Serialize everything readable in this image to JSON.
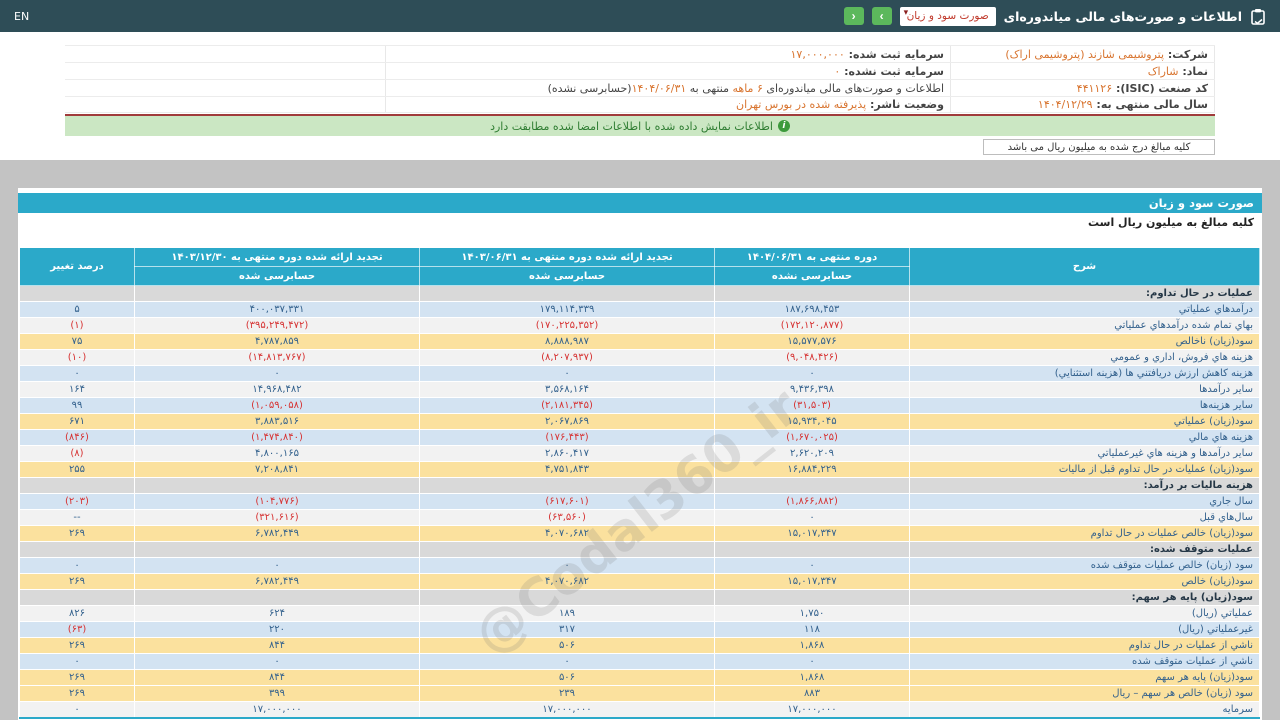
{
  "topbar": {
    "en_label": "EN",
    "title": "اطلاعات و صورت‌های مالی میاندوره‌ای",
    "dropdown_value": "صورت سود و زیان",
    "dropdown_chevron": "▾",
    "next_icon": "›",
    "prev_icon": "‹"
  },
  "company_info": {
    "rows": [
      {
        "right": [
          {
            "t": "شرکت: ",
            "c": "label"
          },
          {
            "t": "پتروشیمی شازند (پتروشیمی اراک)",
            "c": "orange"
          }
        ],
        "mid": [
          {
            "t": "سرمایه ثبت شده: ",
            "c": "label"
          },
          {
            "t": "۱۷,۰۰۰,۰۰۰",
            "c": "orange"
          }
        ]
      },
      {
        "right": [
          {
            "t": "نماد: ",
            "c": "label"
          },
          {
            "t": "شاراک",
            "c": "orange"
          }
        ],
        "mid": [
          {
            "t": "سرمایه ثبت نشده: ",
            "c": "label"
          },
          {
            "t": "۰",
            "c": "orange"
          }
        ]
      },
      {
        "right": [
          {
            "t": "کد صنعت (ISIC): ",
            "c": "label"
          },
          {
            "t": "۴۴۱۱۲۶",
            "c": "orange"
          }
        ],
        "mid": [
          {
            "t": "اطلاعات و صورت‌های مالی میاندوره‌ای ",
            "c": "dark"
          },
          {
            "t": "۶ ماهه",
            "c": "orange"
          },
          {
            "t": " منتهی به ",
            "c": "dark"
          },
          {
            "t": "۱۴۰۴/۰۶/۳۱",
            "c": "orange"
          },
          {
            "t": "(حسابرسی نشده)",
            "c": "dark"
          }
        ]
      },
      {
        "right": [
          {
            "t": "سال مالی منتهی به: ",
            "c": "label"
          },
          {
            "t": "۱۴۰۴/۱۲/۲۹",
            "c": "orange"
          }
        ],
        "mid": [
          {
            "t": "وضعیت ناشر: ",
            "c": "label"
          },
          {
            "t": "پذیرفته شده در بورس تهران",
            "c": "orange"
          }
        ]
      }
    ]
  },
  "notice": {
    "text": "اطلاعات نمایش داده شده با اطلاعات امضا شده مطابقت دارد",
    "icon": "i"
  },
  "unit_note": "کلیه مبالغ درج شده به میلیون ریال می باشد",
  "section": {
    "title": "صورت سود و زیان",
    "subtitle": "کلیه مبالغ به میلیون ریال است"
  },
  "watermark": "@Codal360_ir",
  "table": {
    "headers": {
      "desc": "شرح",
      "cur_title": "دوره منتهی به ۱۴۰۴/۰۶/۳۱",
      "cur_sub": "حسابرسی نشده",
      "p1_title": "تجدید ارائه شده دوره منتهی به ۱۴۰۳/۰۶/۳۱",
      "p1_sub": "حسابرسی شده",
      "p2_title": "تجدید ارائه شده دوره منتهی به ۱۴۰۳/۱۲/۳۰",
      "p2_sub": "حسابرسی شده",
      "pct": "درصد تغییر"
    },
    "rows": [
      {
        "label": "عملیات در حال تداوم:",
        "cur": "",
        "p1": "",
        "p2": "",
        "pct": "",
        "style": "section"
      },
      {
        "label": "درآمدهاي عملياتي",
        "cur": "۱۸۷,۶۹۸,۴۵۳",
        "p1": "۱۷۹,۱۱۴,۳۳۹",
        "p2": "۴۰۰,۰۳۷,۳۳۱",
        "pct": "۵",
        "style": "blue"
      },
      {
        "label": "بهاي تمام شده درآمدهاي عملياتي",
        "cur": "(۱۷۲,۱۲۰,۸۷۷)",
        "p1": "(۱۷۰,۲۲۵,۳۵۲)",
        "p2": "(۳۹۵,۲۴۹,۴۷۲)",
        "pct": "(۱)",
        "style": "white"
      },
      {
        "label": "سود(زيان) ناخالص",
        "cur": "۱۵,۵۷۷,۵۷۶",
        "p1": "۸,۸۸۸,۹۸۷",
        "p2": "۴,۷۸۷,۸۵۹",
        "pct": "۷۵",
        "style": "yellow"
      },
      {
        "label": "هزينه هاي فروش، اداري و عمومي",
        "cur": "(۹,۰۴۸,۴۲۶)",
        "p1": "(۸,۲۰۷,۹۳۷)",
        "p2": "(۱۴,۸۱۳,۷۶۷)",
        "pct": "(۱۰)",
        "style": "white"
      },
      {
        "label": "هزينه کاهش ارزش دريافتني ها (هزينه استثنايي)",
        "cur": "۰",
        "p1": "۰",
        "p2": "۰",
        "pct": "۰",
        "style": "blue"
      },
      {
        "label": "ساير درآمدها",
        "cur": "۹,۴۳۶,۳۹۸",
        "p1": "۳,۵۶۸,۱۶۴",
        "p2": "۱۴,۹۶۸,۴۸۲",
        "pct": "۱۶۴",
        "style": "white"
      },
      {
        "label": "ساير هزينه‌ها",
        "cur": "(۳۱,۵۰۳)",
        "p1": "(۲,۱۸۱,۳۴۵)",
        "p2": "(۱,۰۵۹,۰۵۸)",
        "pct": "۹۹",
        "style": "blue"
      },
      {
        "label": "سود(زيان) عملياتي",
        "cur": "۱۵,۹۳۴,۰۴۵",
        "p1": "۲,۰۶۷,۸۶۹",
        "p2": "۳,۸۸۳,۵۱۶",
        "pct": "۶۷۱",
        "style": "yellow"
      },
      {
        "label": "هزينه هاي مالي",
        "cur": "(۱,۶۷۰,۰۲۵)",
        "p1": "(۱۷۶,۴۴۳)",
        "p2": "(۱,۴۷۴,۸۴۰)",
        "pct": "(۸۴۶)",
        "style": "blue"
      },
      {
        "label": "ساير درآمدها و هزينه هاي غيرعملياتي",
        "cur": "۲,۶۲۰,۲۰۹",
        "p1": "۲,۸۶۰,۴۱۷",
        "p2": "۴,۸۰۰,۱۶۵",
        "pct": "(۸)",
        "style": "white"
      },
      {
        "label": "سود(زيان) عمليات در حال تداوم قبل از ماليات",
        "cur": "۱۶,۸۸۴,۲۲۹",
        "p1": "۴,۷۵۱,۸۴۳",
        "p2": "۷,۲۰۸,۸۴۱",
        "pct": "۲۵۵",
        "style": "yellow"
      },
      {
        "label": "هزينه ماليات بر درآمد:",
        "cur": "",
        "p1": "",
        "p2": "",
        "pct": "",
        "style": "section"
      },
      {
        "label": "سال جاري",
        "cur": "(۱,۸۶۶,۸۸۲)",
        "p1": "(۶۱۷,۶۰۱)",
        "p2": "(۱۰۴,۷۷۶)",
        "pct": "(۲۰۳)",
        "style": "blue"
      },
      {
        "label": "سال‌هاي قبل",
        "cur": "۰",
        "p1": "(۶۳,۵۶۰)",
        "p2": "(۳۲۱,۶۱۶)",
        "pct": "--",
        "style": "white"
      },
      {
        "label": "سود(زيان) خالص عمليات در حال تداوم",
        "cur": "۱۵,۰۱۷,۳۴۷",
        "p1": "۴,۰۷۰,۶۸۲",
        "p2": "۶,۷۸۲,۴۴۹",
        "pct": "۲۶۹",
        "style": "yellow"
      },
      {
        "label": "عمليات متوقف شده:",
        "cur": "",
        "p1": "",
        "p2": "",
        "pct": "",
        "style": "section"
      },
      {
        "label": "سود (زيان) خالص عمليات متوقف شده",
        "cur": "۰",
        "p1": "۰",
        "p2": "۰",
        "pct": "۰",
        "style": "blue"
      },
      {
        "label": "سود(زيان) خالص",
        "cur": "۱۵,۰۱۷,۳۴۷",
        "p1": "۴,۰۷۰,۶۸۲",
        "p2": "۶,۷۸۲,۴۴۹",
        "pct": "۲۶۹",
        "style": "yellow"
      },
      {
        "label": "سود(زيان) پايه هر سهم:",
        "cur": "",
        "p1": "",
        "p2": "",
        "pct": "",
        "style": "section"
      },
      {
        "label": "عملياتي (ريال)",
        "cur": "۱,۷۵۰",
        "p1": "۱۸۹",
        "p2": "۶۲۴",
        "pct": "۸۲۶",
        "style": "white"
      },
      {
        "label": "غيرعملياتي (ريال)",
        "cur": "۱۱۸",
        "p1": "۳۱۷",
        "p2": "۲۲۰",
        "pct": "(۶۳)",
        "style": "blue"
      },
      {
        "label": "ناشي از عمليات در حال تداوم",
        "cur": "۱,۸۶۸",
        "p1": "۵۰۶",
        "p2": "۸۴۴",
        "pct": "۲۶۹",
        "style": "yellow"
      },
      {
        "label": "ناشي از عمليات متوقف شده",
        "cur": "۰",
        "p1": "۰",
        "p2": "۰",
        "pct": "۰",
        "style": "blue"
      },
      {
        "label": "سود(زيان) پايه هر سهم",
        "cur": "۱,۸۶۸",
        "p1": "۵۰۶",
        "p2": "۸۴۴",
        "pct": "۲۶۹",
        "style": "yellow"
      },
      {
        "label": "سود (زيان) خالص هر سهم – ريال",
        "cur": "۸۸۳",
        "p1": "۲۳۹",
        "p2": "۳۹۹",
        "pct": "۲۶۹",
        "style": "yellow"
      },
      {
        "label": "سرمايه",
        "cur": "۱۷,۰۰۰,۰۰۰",
        "p1": "۱۷,۰۰۰,۰۰۰",
        "p2": "۱۷,۰۰۰,۰۰۰",
        "pct": "۰",
        "style": "white"
      }
    ]
  },
  "colors": {
    "topbar_bg": "#2e4d57",
    "accent_teal": "#2ba9c9",
    "row_blue": "#d3e3f2",
    "row_yellow": "#fbe19e",
    "row_gray": "#d9d9d9",
    "row_white": "#f2f2f2",
    "negative_red": "#d63333",
    "value_blue": "#33618d",
    "orange_value": "#d8742f",
    "green_button": "#5cb85c",
    "notice_bg": "#cbe7c3",
    "notice_text": "#2f7d32",
    "dropdown_red": "#c0392b",
    "separator_red": "#a03b3b"
  }
}
